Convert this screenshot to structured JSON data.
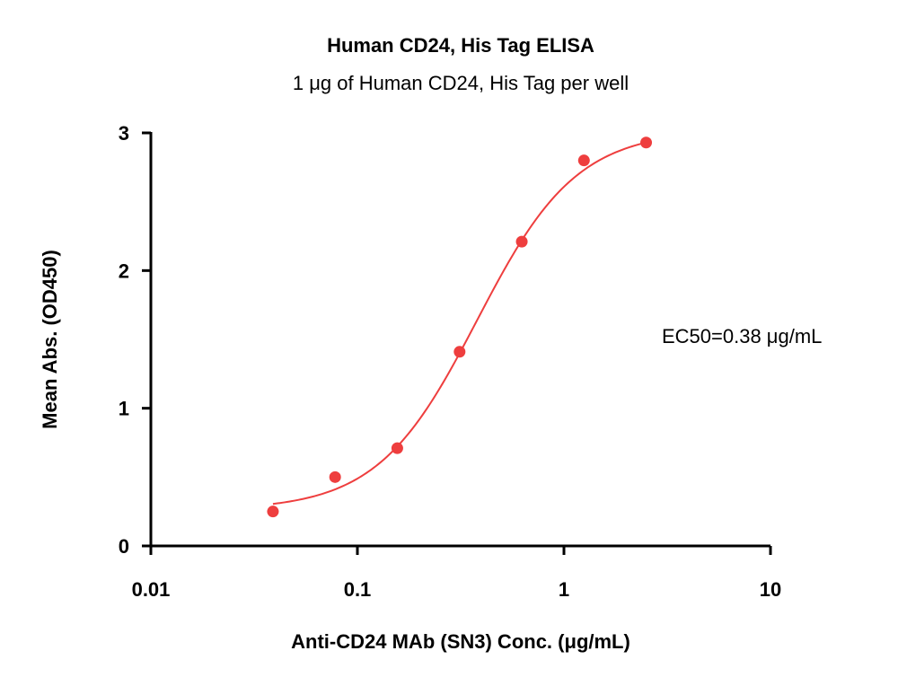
{
  "chart_data": {
    "type": "scatter",
    "title": "Human CD24, His Tag ELISA",
    "subtitle": "1 μg of Human CD24, His Tag per well",
    "xlabel": "Anti-CD24 MAb (SN3) Conc. (μg/mL)",
    "ylabel": "Mean Abs. (OD450)",
    "x_scale": "log",
    "xlim": [
      0.01,
      10
    ],
    "ylim": [
      0,
      3
    ],
    "x_ticks": [
      0.01,
      0.1,
      1,
      10
    ],
    "x_tick_labels": [
      "0.01",
      "0.1",
      "1",
      "10"
    ],
    "y_ticks": [
      0,
      1,
      2,
      3
    ],
    "y_tick_labels": [
      "0",
      "1",
      "2",
      "3"
    ],
    "grid": false,
    "series": [
      {
        "color": "#EE3E3E",
        "points": [
          {
            "x": 0.039,
            "y": 0.25
          },
          {
            "x": 0.078,
            "y": 0.5
          },
          {
            "x": 0.156,
            "y": 0.71
          },
          {
            "x": 0.3125,
            "y": 1.41
          },
          {
            "x": 0.625,
            "y": 2.21
          },
          {
            "x": 1.25,
            "y": 2.8
          },
          {
            "x": 2.5,
            "y": 2.93
          }
        ],
        "fit": {
          "model": "4PL",
          "bottom": 0.26,
          "top": 3.02,
          "ec50": 0.38,
          "hill": 1.8
        }
      }
    ],
    "annotations": [
      "EC50=0.38 μg/mL"
    ]
  }
}
